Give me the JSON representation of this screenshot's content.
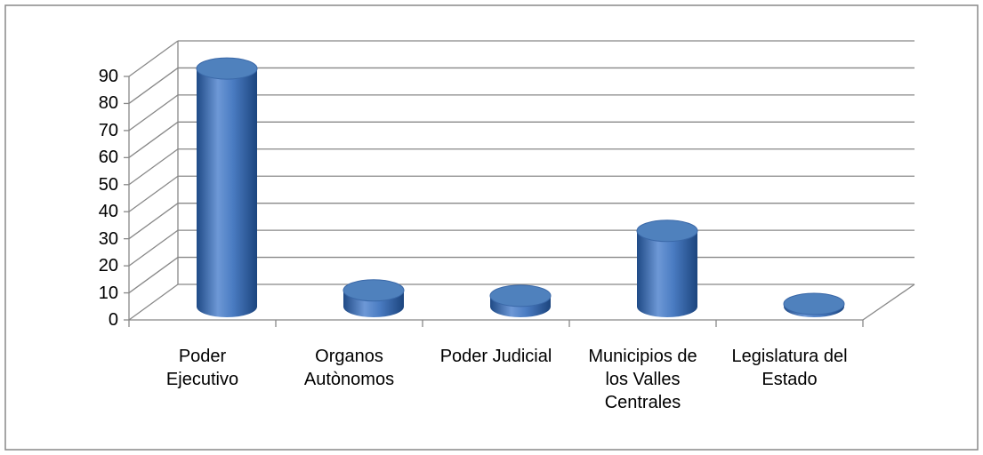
{
  "chart_data": {
    "type": "bar3d",
    "categories": [
      "Poder\nEjecutivo",
      "Organos\nAutònomos",
      "Poder Judicial",
      "Municipios de\nlos Valles\nCentrales",
      "Legislatura del\nEstado"
    ],
    "values": [
      88,
      6,
      4,
      28,
      1
    ],
    "color": "#4f81bd",
    "ylim": [
      0,
      90
    ],
    "yticks": [
      0,
      10,
      20,
      30,
      40,
      50,
      60,
      70,
      80,
      90
    ],
    "grid": true
  }
}
